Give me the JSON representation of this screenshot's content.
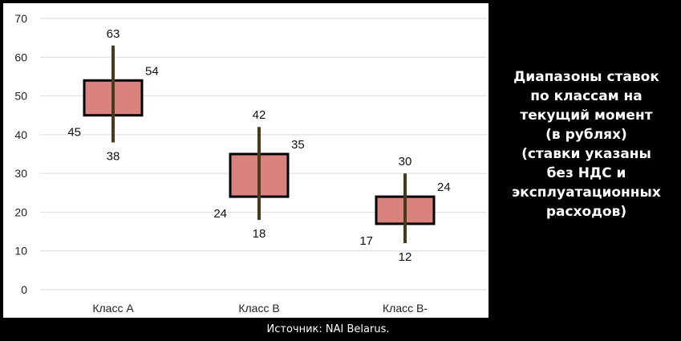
{
  "chart_data": {
    "type": "box",
    "categories": [
      "Класс А",
      "Класс В",
      "Класс В-"
    ],
    "boxes": [
      {
        "category": "Класс А",
        "whisker_low": 38,
        "box_low": 45,
        "box_high": 54,
        "whisker_high": 63
      },
      {
        "category": "Класс В",
        "whisker_low": 18,
        "box_low": 24,
        "box_high": 35,
        "whisker_high": 42
      },
      {
        "category": "Класс В-",
        "whisker_low": 12,
        "box_low": 17,
        "box_high": 24,
        "whisker_high": 30
      }
    ],
    "ylim": [
      0,
      70
    ],
    "yticks": [
      0,
      10,
      20,
      30,
      40,
      50,
      60,
      70
    ],
    "grid": true,
    "colors": {
      "box_fill": "#d9827e",
      "box_stroke": "#000000",
      "whisker": "#4a3a1c",
      "grid": "#d9d9d9"
    }
  },
  "side_title": "Диапазоны ставок\nпо классам на\nтекущий момент\n(в рублях)\n(ставки указаны\nбез НДС и\nэксплуатационных\nрасходов)",
  "source_note": "Источник: NAI Belarus."
}
